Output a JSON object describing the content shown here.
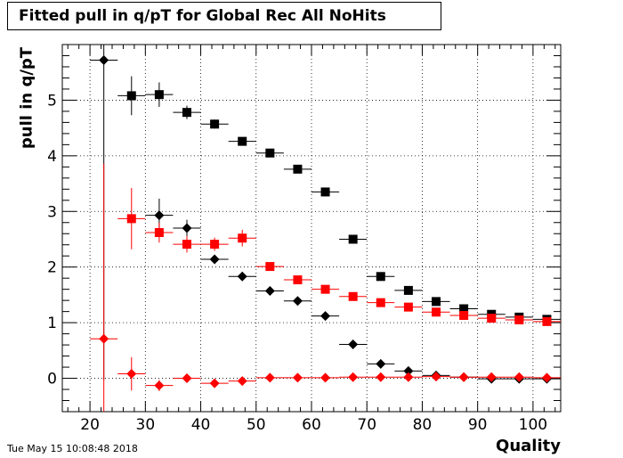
{
  "chart_data": {
    "type": "scatter",
    "title": "Fitted pull in q/pT for Global Rec All NoHits",
    "xlabel": "Quality",
    "ylabel": "pull in q/pT",
    "xlim": [
      15,
      105
    ],
    "ylim": [
      -0.6,
      6.0
    ],
    "xticks": [
      20,
      30,
      40,
      50,
      60,
      70,
      80,
      90,
      100
    ],
    "yticks": [
      0,
      1,
      2,
      3,
      4,
      5
    ],
    "grid": true,
    "timestamp": "Tue May 15 10:08:48 2018",
    "series": [
      {
        "color": "#000000",
        "marker": "square",
        "points": [
          {
            "x": 27.5,
            "y": 5.08,
            "ex": 2.5,
            "ey": 0.35
          },
          {
            "x": 32.5,
            "y": 5.1,
            "ex": 2.5,
            "ey": 0.22
          },
          {
            "x": 37.5,
            "y": 4.78,
            "ex": 2.5,
            "ey": 0.12
          },
          {
            "x": 42.5,
            "y": 4.57,
            "ex": 2.5,
            "ey": 0.08
          },
          {
            "x": 47.5,
            "y": 4.26,
            "ex": 2.5,
            "ey": 0.05
          },
          {
            "x": 52.5,
            "y": 4.05,
            "ex": 2.5,
            "ey": 0.04
          },
          {
            "x": 57.5,
            "y": 3.76,
            "ex": 2.5,
            "ey": 0.03
          },
          {
            "x": 62.5,
            "y": 3.35,
            "ex": 2.5,
            "ey": 0.03
          },
          {
            "x": 67.5,
            "y": 2.5,
            "ex": 2.5,
            "ey": 0.02
          },
          {
            "x": 72.5,
            "y": 1.83,
            "ex": 2.5,
            "ey": 0.02
          },
          {
            "x": 77.5,
            "y": 1.58,
            "ex": 2.5,
            "ey": 0.02
          },
          {
            "x": 82.5,
            "y": 1.38,
            "ex": 2.5,
            "ey": 0.02
          },
          {
            "x": 87.5,
            "y": 1.25,
            "ex": 2.5,
            "ey": 0.02
          },
          {
            "x": 92.5,
            "y": 1.15,
            "ex": 2.5,
            "ey": 0.02
          },
          {
            "x": 97.5,
            "y": 1.1,
            "ex": 2.5,
            "ey": 0.02
          },
          {
            "x": 102.5,
            "y": 1.06,
            "ex": 2.5,
            "ey": 0.02
          }
        ]
      },
      {
        "color": "#000000",
        "marker": "diamond",
        "points": [
          {
            "x": 22.5,
            "y": 5.72,
            "ex": 2.5,
            "ey": 5.75
          },
          {
            "x": 32.5,
            "y": 2.93,
            "ex": 2.5,
            "ey": 0.3
          },
          {
            "x": 37.5,
            "y": 2.7,
            "ex": 2.5,
            "ey": 0.15
          },
          {
            "x": 42.5,
            "y": 2.14,
            "ex": 2.5,
            "ey": 0.05
          },
          {
            "x": 47.5,
            "y": 1.83,
            "ex": 2.5,
            "ey": 0.03
          },
          {
            "x": 52.5,
            "y": 1.57,
            "ex": 2.5,
            "ey": 0.02
          },
          {
            "x": 57.5,
            "y": 1.39,
            "ex": 2.5,
            "ey": 0.02
          },
          {
            "x": 62.5,
            "y": 1.12,
            "ex": 2.5,
            "ey": 0.02
          },
          {
            "x": 67.5,
            "y": 0.61,
            "ex": 2.5,
            "ey": 0.02
          },
          {
            "x": 72.5,
            "y": 0.26,
            "ex": 2.5,
            "ey": 0.02
          },
          {
            "x": 77.5,
            "y": 0.13,
            "ex": 2.5,
            "ey": 0.02
          },
          {
            "x": 82.5,
            "y": 0.05,
            "ex": 2.5,
            "ey": 0.02
          },
          {
            "x": 87.5,
            "y": 0.02,
            "ex": 2.5,
            "ey": 0.02
          },
          {
            "x": 92.5,
            "y": -0.01,
            "ex": 2.5,
            "ey": 0.02
          },
          {
            "x": 97.5,
            "y": -0.01,
            "ex": 2.5,
            "ey": 0.02
          },
          {
            "x": 102.5,
            "y": -0.01,
            "ex": 2.5,
            "ey": 0.02
          }
        ]
      },
      {
        "color": "#ff0000",
        "marker": "square",
        "points": [
          {
            "x": 27.5,
            "y": 2.87,
            "ex": 2.5,
            "ey": 0.55
          },
          {
            "x": 32.5,
            "y": 2.62,
            "ex": 2.5,
            "ey": 0.18
          },
          {
            "x": 37.5,
            "y": 2.41,
            "ex": 2.5,
            "ey": 0.15
          },
          {
            "x": 42.5,
            "y": 2.41,
            "ex": 2.5,
            "ey": 0.12
          },
          {
            "x": 47.5,
            "y": 2.52,
            "ex": 2.5,
            "ey": 0.15
          },
          {
            "x": 52.5,
            "y": 2.01,
            "ex": 2.5,
            "ey": 0.04
          },
          {
            "x": 57.5,
            "y": 1.77,
            "ex": 2.5,
            "ey": 0.03
          },
          {
            "x": 62.5,
            "y": 1.6,
            "ex": 2.5,
            "ey": 0.03
          },
          {
            "x": 67.5,
            "y": 1.47,
            "ex": 2.5,
            "ey": 0.02
          },
          {
            "x": 72.5,
            "y": 1.36,
            "ex": 2.5,
            "ey": 0.02
          },
          {
            "x": 77.5,
            "y": 1.28,
            "ex": 2.5,
            "ey": 0.02
          },
          {
            "x": 82.5,
            "y": 1.19,
            "ex": 2.5,
            "ey": 0.02
          },
          {
            "x": 87.5,
            "y": 1.13,
            "ex": 2.5,
            "ey": 0.02
          },
          {
            "x": 92.5,
            "y": 1.08,
            "ex": 2.5,
            "ey": 0.02
          },
          {
            "x": 97.5,
            "y": 1.05,
            "ex": 2.5,
            "ey": 0.02
          },
          {
            "x": 102.5,
            "y": 1.02,
            "ex": 2.5,
            "ey": 0.02
          }
        ]
      },
      {
        "color": "#ff0000",
        "marker": "diamond",
        "points": [
          {
            "x": 22.5,
            "y": 0.71,
            "ex": 2.5,
            "ey": 3.15
          },
          {
            "x": 27.5,
            "y": 0.08,
            "ex": 2.5,
            "ey": 0.3
          },
          {
            "x": 32.5,
            "y": -0.13,
            "ex": 2.5,
            "ey": 0.1
          },
          {
            "x": 37.5,
            "y": 0.0,
            "ex": 2.5,
            "ey": 0.05
          },
          {
            "x": 42.5,
            "y": -0.09,
            "ex": 2.5,
            "ey": 0.04
          },
          {
            "x": 47.5,
            "y": -0.05,
            "ex": 2.5,
            "ey": 0.03
          },
          {
            "x": 52.5,
            "y": 0.01,
            "ex": 2.5,
            "ey": 0.02
          },
          {
            "x": 57.5,
            "y": 0.01,
            "ex": 2.5,
            "ey": 0.02
          },
          {
            "x": 62.5,
            "y": 0.01,
            "ex": 2.5,
            "ey": 0.02
          },
          {
            "x": 67.5,
            "y": 0.02,
            "ex": 2.5,
            "ey": 0.02
          },
          {
            "x": 72.5,
            "y": 0.02,
            "ex": 2.5,
            "ey": 0.02
          },
          {
            "x": 77.5,
            "y": 0.02,
            "ex": 2.5,
            "ey": 0.02
          },
          {
            "x": 82.5,
            "y": 0.03,
            "ex": 2.5,
            "ey": 0.02
          },
          {
            "x": 87.5,
            "y": 0.02,
            "ex": 2.5,
            "ey": 0.02
          },
          {
            "x": 92.5,
            "y": 0.02,
            "ex": 2.5,
            "ey": 0.02
          },
          {
            "x": 97.5,
            "y": 0.02,
            "ex": 2.5,
            "ey": 0.02
          },
          {
            "x": 102.5,
            "y": 0.01,
            "ex": 2.5,
            "ey": 0.02
          }
        ]
      }
    ]
  }
}
